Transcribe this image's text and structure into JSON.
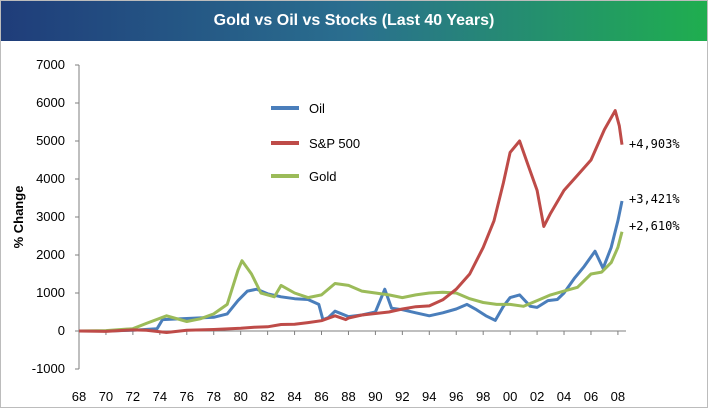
{
  "title": "Gold vs Oil vs Stocks (Last 40 Years)",
  "chart_data": {
    "type": "line",
    "ylabel": "% Change",
    "xlabel": "",
    "ylim": [
      -1000,
      7000
    ],
    "xlim": [
      1968,
      2008.6
    ],
    "yticks": [
      "-1000",
      "0",
      "1000",
      "2000",
      "3000",
      "4000",
      "5000",
      "6000",
      "7000"
    ],
    "xticks": [
      "68",
      "70",
      "72",
      "74",
      "76",
      "78",
      "80",
      "82",
      "84",
      "86",
      "88",
      "90",
      "92",
      "94",
      "96",
      "98",
      "00",
      "02",
      "04",
      "06",
      "08"
    ],
    "grid": false,
    "legend_position": "center-left",
    "series": [
      {
        "name": "Oil",
        "color": "#4a7ebb",
        "end_label": "+3,421%",
        "points": [
          [
            1968,
            0
          ],
          [
            1970,
            0
          ],
          [
            1972,
            20
          ],
          [
            1973.8,
            60
          ],
          [
            1974.2,
            300
          ],
          [
            1976,
            330
          ],
          [
            1978,
            360
          ],
          [
            1979,
            450
          ],
          [
            1979.8,
            800
          ],
          [
            1980.5,
            1050
          ],
          [
            1981.2,
            1100
          ],
          [
            1982,
            980
          ],
          [
            1983,
            900
          ],
          [
            1984,
            850
          ],
          [
            1985,
            830
          ],
          [
            1985.8,
            700
          ],
          [
            1986.1,
            300
          ],
          [
            1986.5,
            350
          ],
          [
            1987,
            520
          ],
          [
            1988,
            380
          ],
          [
            1989,
            420
          ],
          [
            1990,
            500
          ],
          [
            1990.7,
            1100
          ],
          [
            1991.2,
            600
          ],
          [
            1992,
            560
          ],
          [
            1993,
            480
          ],
          [
            1994,
            400
          ],
          [
            1995,
            480
          ],
          [
            1996,
            580
          ],
          [
            1996.8,
            700
          ],
          [
            1997.5,
            560
          ],
          [
            1998.2,
            400
          ],
          [
            1998.9,
            280
          ],
          [
            1999.5,
            650
          ],
          [
            2000,
            880
          ],
          [
            2000.7,
            950
          ],
          [
            2001.5,
            650
          ],
          [
            2002,
            620
          ],
          [
            2002.8,
            800
          ],
          [
            2003.5,
            830
          ],
          [
            2004,
            1000
          ],
          [
            2004.8,
            1400
          ],
          [
            2005.5,
            1700
          ],
          [
            2006.3,
            2100
          ],
          [
            2006.9,
            1650
          ],
          [
            2007.5,
            2200
          ],
          [
            2008,
            2900
          ],
          [
            2008.3,
            3421
          ]
        ]
      },
      {
        "name": "S&P 500",
        "color": "#be4b48",
        "end_label": "+4,903%",
        "points": [
          [
            1968,
            0
          ],
          [
            1970,
            -10
          ],
          [
            1972,
            30
          ],
          [
            1973,
            20
          ],
          [
            1974.5,
            -40
          ],
          [
            1976,
            20
          ],
          [
            1978,
            40
          ],
          [
            1980,
            70
          ],
          [
            1981,
            100
          ],
          [
            1982,
            110
          ],
          [
            1983,
            170
          ],
          [
            1984,
            180
          ],
          [
            1985,
            220
          ],
          [
            1986,
            270
          ],
          [
            1987,
            400
          ],
          [
            1987.8,
            300
          ],
          [
            1988,
            340
          ],
          [
            1989,
            420
          ],
          [
            1990,
            460
          ],
          [
            1991,
            500
          ],
          [
            1992,
            580
          ],
          [
            1993,
            640
          ],
          [
            1994,
            660
          ],
          [
            1995,
            820
          ],
          [
            1996,
            1100
          ],
          [
            1997,
            1500
          ],
          [
            1998,
            2200
          ],
          [
            1998.8,
            2900
          ],
          [
            1999.5,
            3900
          ],
          [
            2000,
            4700
          ],
          [
            2000.7,
            5000
          ],
          [
            2001.3,
            4400
          ],
          [
            2002,
            3700
          ],
          [
            2002.5,
            2750
          ],
          [
            2003,
            3100
          ],
          [
            2004,
            3700
          ],
          [
            2005,
            4100
          ],
          [
            2006,
            4500
          ],
          [
            2007,
            5300
          ],
          [
            2007.8,
            5800
          ],
          [
            2008.1,
            5400
          ],
          [
            2008.3,
            4903
          ]
        ]
      },
      {
        "name": "Gold",
        "color": "#9bbb59",
        "end_label": "+2,610%",
        "points": [
          [
            1968,
            0
          ],
          [
            1970,
            10
          ],
          [
            1972,
            60
          ],
          [
            1973,
            200
          ],
          [
            1974.5,
            400
          ],
          [
            1976,
            250
          ],
          [
            1977,
            320
          ],
          [
            1978,
            450
          ],
          [
            1979,
            700
          ],
          [
            1979.8,
            1600
          ],
          [
            1980.1,
            1850
          ],
          [
            1980.8,
            1500
          ],
          [
            1981.5,
            1000
          ],
          [
            1982.5,
            900
          ],
          [
            1983,
            1200
          ],
          [
            1984,
            1000
          ],
          [
            1985,
            880
          ],
          [
            1986,
            950
          ],
          [
            1987,
            1250
          ],
          [
            1988,
            1200
          ],
          [
            1989,
            1050
          ],
          [
            1990,
            1000
          ],
          [
            1991,
            950
          ],
          [
            1992,
            880
          ],
          [
            1993,
            950
          ],
          [
            1994,
            1000
          ],
          [
            1995,
            1020
          ],
          [
            1996,
            1000
          ],
          [
            1997,
            850
          ],
          [
            1998,
            750
          ],
          [
            1999,
            700
          ],
          [
            2000,
            700
          ],
          [
            2001,
            650
          ],
          [
            2002,
            800
          ],
          [
            2003,
            950
          ],
          [
            2004,
            1050
          ],
          [
            2005,
            1150
          ],
          [
            2006,
            1500
          ],
          [
            2006.8,
            1550
          ],
          [
            2007.5,
            1800
          ],
          [
            2008,
            2200
          ],
          [
            2008.3,
            2610
          ]
        ]
      }
    ]
  }
}
